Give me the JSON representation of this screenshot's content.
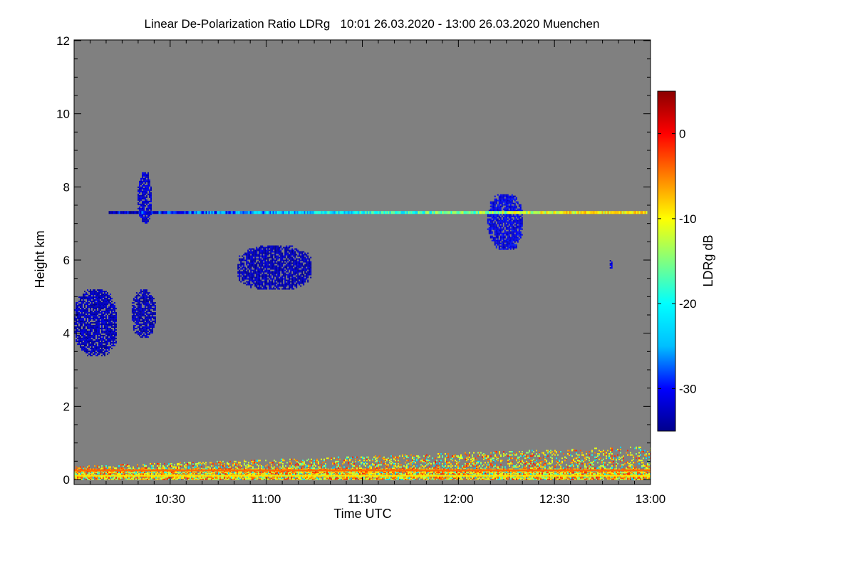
{
  "chart_data": {
    "type": "heatmap",
    "title": "Linear De-Polarization Ratio LDRg   10:01 26.03.2020 - 13:00 26.03.2020 Muenchen",
    "xlabel": "Time UTC",
    "ylabel": "Height km",
    "colorbar_label": "LDRg dB",
    "x_range_hours": [
      10.0,
      13.0
    ],
    "x_ticks": [
      {
        "label": "10:30",
        "value": 10.5
      },
      {
        "label": "11:00",
        "value": 11.0
      },
      {
        "label": "11:30",
        "value": 11.5
      },
      {
        "label": "12:00",
        "value": 12.0
      },
      {
        "label": "12:30",
        "value": 12.5
      },
      {
        "label": "13:00",
        "value": 13.0
      }
    ],
    "y_range_km": [
      0,
      12
    ],
    "y_ticks": [
      {
        "label": "0",
        "value": 0
      },
      {
        "label": "2",
        "value": 2
      },
      {
        "label": "4",
        "value": 4
      },
      {
        "label": "6",
        "value": 6
      },
      {
        "label": "8",
        "value": 8
      },
      {
        "label": "10",
        "value": 10
      },
      {
        "label": "12",
        "value": 12
      }
    ],
    "color_range_db": [
      -35,
      5
    ],
    "colorbar_ticks": [
      {
        "label": "0",
        "value": 0
      },
      {
        "label": "-10",
        "value": -10
      },
      {
        "label": "-20",
        "value": -20
      },
      {
        "label": "-30",
        "value": -30
      }
    ],
    "colormap": [
      "#00008b",
      "#0000ff",
      "#00bfff",
      "#00ffff",
      "#80ff80",
      "#ffff00",
      "#ff8000",
      "#ff0000",
      "#8b0000"
    ],
    "background_color": "#808080",
    "features": [
      {
        "name": "low-cloud-mass",
        "t0": 10.0,
        "t1": 10.22,
        "h0": 3.4,
        "h1": 5.2,
        "ldr": -33
      },
      {
        "name": "low-cloud-patch-2",
        "t0": 10.3,
        "t1": 10.42,
        "h0": 3.9,
        "h1": 5.2,
        "ldr": -33
      },
      {
        "name": "mid-cloud-11h",
        "t0": 10.85,
        "t1": 11.23,
        "h0": 5.2,
        "h1": 6.4,
        "ldr": -33
      },
      {
        "name": "upper-plume-10h20",
        "t0": 10.33,
        "t1": 10.4,
        "h0": 7.0,
        "h1": 8.4,
        "ldr": -32
      },
      {
        "name": "upper-cloud-12h15",
        "t0": 12.15,
        "t1": 12.33,
        "h0": 6.3,
        "h1": 7.8,
        "ldr": -31
      },
      {
        "name": "small-cloud-12h45",
        "t0": 12.78,
        "t1": 12.8,
        "h0": 5.8,
        "h1": 6.0,
        "ldr": -32
      },
      {
        "name": "layer-7.3km",
        "t0": 10.18,
        "t1": 12.98,
        "h0": 7.28,
        "h1": 7.32,
        "ldr": -20
      },
      {
        "name": "boundary-layer",
        "t0": 10.0,
        "t1": 13.0,
        "h0": 0.0,
        "h1": 0.9,
        "ldr": -8
      }
    ]
  }
}
